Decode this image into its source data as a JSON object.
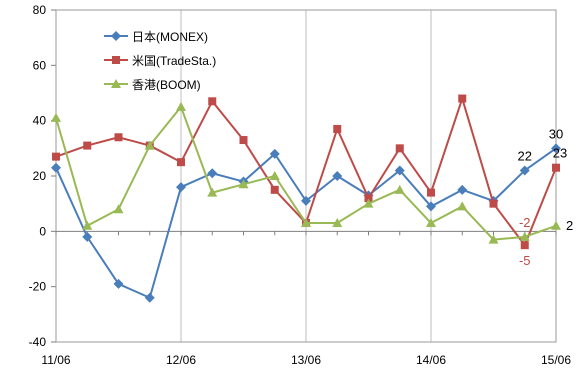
{
  "chart_data": {
    "type": "line",
    "title": "",
    "xlabel": "",
    "ylabel": "",
    "ylim": [
      -40,
      80
    ],
    "yticks": [
      -40,
      -20,
      0,
      20,
      40,
      60,
      80
    ],
    "x_tick_labels": [
      "11/06",
      "12/06",
      "13/06",
      "14/06",
      "15/06"
    ],
    "x_tick_indices": [
      0,
      4,
      8,
      12,
      16
    ],
    "grid": "vertical",
    "legend": "top-left",
    "series": [
      {
        "name": "日本(MONEX)",
        "color": "#4a7ebb",
        "marker": "diamond",
        "values": [
          23,
          -2,
          -19,
          -24,
          16,
          21,
          18,
          28,
          11,
          20,
          13,
          22,
          9,
          15,
          11,
          22,
          30
        ]
      },
      {
        "name": "米国(TradeSta.)",
        "color": "#be4b48",
        "marker": "square",
        "values": [
          27,
          31,
          34,
          31,
          25,
          47,
          33,
          15,
          3,
          37,
          12,
          30,
          14,
          48,
          10,
          -5,
          23
        ]
      },
      {
        "name": "香港(BOOM)",
        "color": "#98b954",
        "marker": "triangle",
        "values": [
          41,
          2,
          8,
          31,
          45,
          14,
          17,
          20,
          3,
          3,
          10,
          15,
          3,
          9,
          -3,
          -2,
          2
        ]
      }
    ],
    "annotations": [
      {
        "text": "30",
        "series": 0,
        "index": 16,
        "color": "#000000",
        "pos": "above"
      },
      {
        "text": "22",
        "series": 0,
        "index": 15,
        "color": "#000000",
        "pos": "above"
      },
      {
        "text": "23",
        "series": 1,
        "index": 16,
        "color": "#000000",
        "pos": "left"
      },
      {
        "text": "-2",
        "series": 2,
        "index": 15,
        "color": "#be4b48",
        "pos": "above"
      },
      {
        "text": "-5",
        "series": 1,
        "index": 15,
        "color": "#be4b48",
        "pos": "below"
      },
      {
        "text": "2",
        "series": 2,
        "index": 16,
        "color": "#000000",
        "pos": "right"
      }
    ]
  }
}
